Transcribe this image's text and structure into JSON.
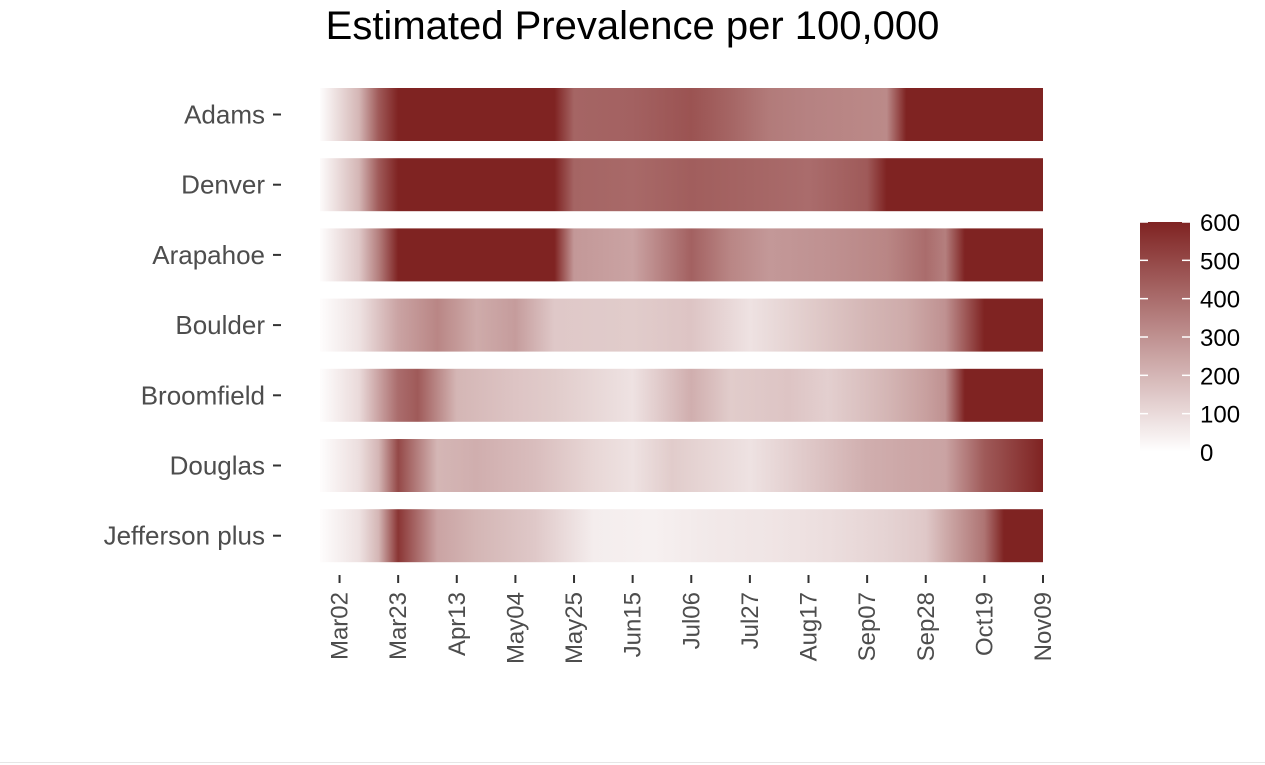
{
  "chart_data": {
    "type": "heatmap",
    "title": "Estimated Prevalence per 100,000",
    "xlabel": "",
    "ylabel": "",
    "x_start": "2020-02-24",
    "x_end": "2020-11-09",
    "x_ticks": [
      "Mar02",
      "Mar23",
      "Apr13",
      "May04",
      "May25",
      "Jun15",
      "Jul06",
      "Jul27",
      "Aug17",
      "Sep07",
      "Sep28",
      "Oct19",
      "Nov09"
    ],
    "x_tick_dates": [
      "2020-03-02",
      "2020-03-23",
      "2020-04-13",
      "2020-05-04",
      "2020-05-25",
      "2020-06-15",
      "2020-07-06",
      "2020-07-27",
      "2020-08-17",
      "2020-09-07",
      "2020-09-28",
      "2020-10-19",
      "2020-11-09"
    ],
    "color_scale": {
      "min": 0,
      "max": 600,
      "low_color": "#ffffff",
      "high_color": "#7f2322"
    },
    "legend": {
      "position": "right",
      "breaks": [
        600,
        500,
        400,
        300,
        200,
        100,
        0
      ]
    },
    "series": [
      {
        "name": "Adams",
        "dates": [
          "2020-02-24",
          "2020-03-09",
          "2020-03-16",
          "2020-03-23",
          "2020-05-18",
          "2020-05-25",
          "2020-06-15",
          "2020-07-06",
          "2020-07-20",
          "2020-08-03",
          "2020-08-17",
          "2020-08-31",
          "2020-09-14",
          "2020-09-21",
          "2020-10-19",
          "2020-11-09"
        ],
        "values": [
          5,
          200,
          450,
          650,
          650,
          420,
          430,
          470,
          420,
          360,
          340,
          330,
          320,
          650,
          650,
          650
        ]
      },
      {
        "name": "Denver",
        "dates": [
          "2020-02-24",
          "2020-03-09",
          "2020-03-16",
          "2020-03-23",
          "2020-05-18",
          "2020-05-25",
          "2020-06-15",
          "2020-07-06",
          "2020-07-27",
          "2020-08-17",
          "2020-09-07",
          "2020-09-14",
          "2020-10-19",
          "2020-11-09"
        ],
        "values": [
          10,
          200,
          450,
          650,
          650,
          420,
          410,
          440,
          420,
          400,
          450,
          600,
          650,
          650
        ]
      },
      {
        "name": "Arapahoe",
        "dates": [
          "2020-02-24",
          "2020-03-09",
          "2020-03-16",
          "2020-03-23",
          "2020-05-11",
          "2020-05-18",
          "2020-05-25",
          "2020-06-15",
          "2020-07-06",
          "2020-07-20",
          "2020-08-03",
          "2020-08-24",
          "2020-09-14",
          "2020-09-28",
          "2020-10-05",
          "2020-10-12",
          "2020-10-19",
          "2020-11-09"
        ],
        "values": [
          5,
          150,
          350,
          650,
          650,
          600,
          280,
          250,
          430,
          330,
          280,
          300,
          330,
          400,
          350,
          600,
          650,
          650
        ]
      },
      {
        "name": "Boulder",
        "dates": [
          "2020-02-24",
          "2020-03-09",
          "2020-03-23",
          "2020-04-06",
          "2020-04-20",
          "2020-05-04",
          "2020-05-18",
          "2020-06-15",
          "2020-07-06",
          "2020-07-27",
          "2020-08-17",
          "2020-09-07",
          "2020-09-21",
          "2020-10-05",
          "2020-10-12",
          "2020-10-19",
          "2020-11-09"
        ],
        "values": [
          5,
          80,
          250,
          330,
          230,
          270,
          150,
          140,
          160,
          80,
          140,
          200,
          230,
          300,
          450,
          650,
          650
        ]
      },
      {
        "name": "Broomfield",
        "dates": [
          "2020-02-24",
          "2020-03-09",
          "2020-03-23",
          "2020-03-30",
          "2020-04-13",
          "2020-05-04",
          "2020-05-18",
          "2020-06-15",
          "2020-07-06",
          "2020-07-20",
          "2020-08-10",
          "2020-08-24",
          "2020-09-14",
          "2020-09-28",
          "2020-10-05",
          "2020-10-12",
          "2020-10-19",
          "2020-11-09"
        ],
        "values": [
          5,
          100,
          400,
          450,
          200,
          160,
          140,
          80,
          220,
          140,
          160,
          130,
          200,
          260,
          300,
          650,
          650,
          650
        ]
      },
      {
        "name": "Douglas",
        "dates": [
          "2020-02-24",
          "2020-03-09",
          "2020-03-16",
          "2020-03-23",
          "2020-04-06",
          "2020-04-20",
          "2020-05-11",
          "2020-06-01",
          "2020-06-15",
          "2020-06-29",
          "2020-07-27",
          "2020-08-17",
          "2020-09-07",
          "2020-09-21",
          "2020-10-05",
          "2020-10-19",
          "2020-11-09"
        ],
        "values": [
          5,
          90,
          200,
          500,
          200,
          220,
          180,
          110,
          80,
          140,
          80,
          150,
          220,
          240,
          250,
          450,
          650
        ]
      },
      {
        "name": "Jefferson plus",
        "dates": [
          "2020-02-24",
          "2020-03-09",
          "2020-03-16",
          "2020-03-23",
          "2020-04-06",
          "2020-04-20",
          "2020-05-11",
          "2020-06-01",
          "2020-06-22",
          "2020-07-13",
          "2020-08-03",
          "2020-08-24",
          "2020-09-14",
          "2020-09-28",
          "2020-10-05",
          "2020-10-19",
          "2020-10-26",
          "2020-11-09"
        ],
        "values": [
          5,
          80,
          200,
          550,
          250,
          200,
          150,
          50,
          40,
          60,
          70,
          90,
          120,
          150,
          230,
          380,
          650,
          650
        ]
      }
    ]
  }
}
